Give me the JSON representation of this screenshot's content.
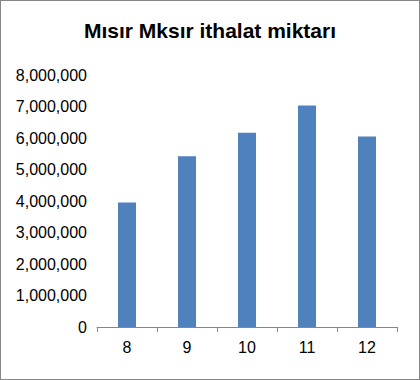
{
  "chart_data": {
    "type": "bar",
    "title": "Mısır Mksır ithalat miktarı",
    "categories": [
      "8",
      "9",
      "10",
      "11",
      "12"
    ],
    "values": [
      3950000,
      5420000,
      6170000,
      7030000,
      6050000
    ],
    "color": "#4f81bd",
    "ylim": [
      0,
      8000000
    ],
    "yticks": [
      0,
      {
        "value": 1000000,
        "label": "1,000,000"
      },
      {
        "value": 2000000,
        "label": "2,000,000"
      },
      {
        "value": 3000000,
        "label": "3,000,000"
      },
      {
        "value": 4000000,
        "label": "4,000,000"
      },
      {
        "value": 5000000,
        "label": "5,000,000"
      },
      {
        "value": 6000000,
        "label": "6,000,000"
      },
      {
        "value": 7000000,
        "label": "7,000,000"
      },
      {
        "value": 8000000,
        "label": "8,000,000"
      }
    ],
    "grid": false
  }
}
